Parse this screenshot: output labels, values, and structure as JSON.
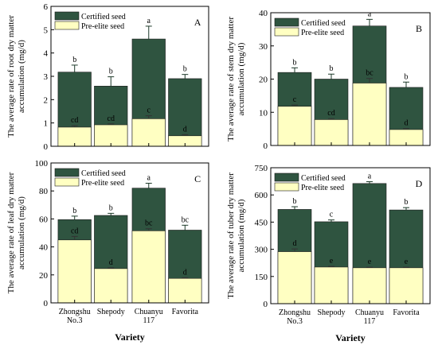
{
  "chart_data": [
    {
      "type": "bar",
      "panel_label": "A",
      "categories": [
        "Zhongshu No.3",
        "Shepody",
        "Chuanyu 117",
        "Favorita"
      ],
      "xlabel": "",
      "ylabel": "The average rate of root dry matter accumulation (mg/d)",
      "ylim": [
        0,
        6
      ],
      "yticks": [
        0,
        1,
        2,
        3,
        4,
        5,
        6
      ],
      "series": [
        {
          "name": "Certified seed",
          "values": [
            3.18,
            2.58,
            4.6,
            2.9
          ],
          "errors": [
            0.3,
            0.4,
            0.55,
            0.18
          ],
          "letters": [
            "b",
            "b",
            "a",
            "b"
          ],
          "color": "#2f5440"
        },
        {
          "name": "Pre-elite seed",
          "values": [
            0.82,
            0.92,
            1.18,
            0.45
          ],
          "errors": [
            0.06,
            0.04,
            0.13,
            0.05
          ],
          "letters": [
            "cd",
            "cd",
            "c",
            "d"
          ],
          "color": "#ffffc2"
        }
      ],
      "legend": "top-left"
    },
    {
      "type": "bar",
      "panel_label": "B",
      "categories": [
        "Zhongshu No.3",
        "Shepody",
        "Chuanyu 117",
        "Favorita"
      ],
      "xlabel": "",
      "ylabel": "The average rate of stem dry matter accumulation (mg/d)",
      "ylim": [
        0,
        40
      ],
      "yticks": [
        0,
        10,
        20,
        30,
        40
      ],
      "series": [
        {
          "name": "Certified seed",
          "values": [
            22,
            20,
            36,
            17.5
          ],
          "errors": [
            1.4,
            1.5,
            2,
            1.6
          ],
          "letters": [
            "b",
            "b",
            "a",
            "b"
          ],
          "color": "#2f5440"
        },
        {
          "name": "Pre-elite seed",
          "values": [
            11.8,
            7.8,
            18.8,
            4.8
          ],
          "errors": [
            0.4,
            0.3,
            1.4,
            0.3
          ],
          "letters": [
            "c",
            "cd",
            "bc",
            "d"
          ],
          "color": "#ffffc2"
        }
      ],
      "legend": "top-left"
    },
    {
      "type": "bar",
      "panel_label": "C",
      "categories": [
        "Zhongshu No.3",
        "Shepody",
        "Chuanyu 117",
        "Favorita"
      ],
      "xlabel": "Variety",
      "ylabel": "The average rate of leaf dry matter accumulation (mg/d)",
      "ylim": [
        0,
        100
      ],
      "yticks": [
        0,
        20,
        40,
        60,
        80,
        100
      ],
      "series": [
        {
          "name": "Certified seed",
          "values": [
            59.5,
            62.5,
            82,
            52
          ],
          "errors": [
            2.5,
            1.5,
            3.5,
            3.5
          ],
          "letters": [
            "b",
            "b",
            "a",
            "bc"
          ],
          "color": "#2f5440"
        },
        {
          "name": "Pre-elite seed",
          "values": [
            45,
            24.5,
            51.5,
            17.5
          ],
          "errors": [
            2.5,
            0.5,
            1.5,
            0.5
          ],
          "letters": [
            "cd",
            "d",
            "bc",
            "d"
          ],
          "color": "#ffffc2"
        }
      ],
      "legend": "top-left"
    },
    {
      "type": "bar",
      "panel_label": "D",
      "categories": [
        "Zhongshu No.3",
        "Shepody",
        "Chuanyu 117",
        "Favorita"
      ],
      "xlabel": "Variety",
      "ylabel": "The average rate of tuber dry matter accumulation (mg/d)",
      "ylim": [
        0,
        750
      ],
      "yticks": [
        0,
        150,
        300,
        450,
        600,
        750
      ],
      "series": [
        {
          "name": "Certified seed",
          "values": [
            520,
            452,
            663,
            517
          ],
          "errors": [
            15,
            10,
            10,
            13
          ],
          "letters": [
            "b",
            "c",
            "a",
            "b"
          ],
          "color": "#2f5440"
        },
        {
          "name": "Pre-elite seed",
          "values": [
            287,
            202,
            198,
            198
          ],
          "errors": [
            15,
            4,
            3,
            3
          ],
          "letters": [
            "d",
            "e",
            "e",
            "e"
          ],
          "color": "#ffffc2"
        }
      ],
      "legend": "top-left"
    }
  ]
}
